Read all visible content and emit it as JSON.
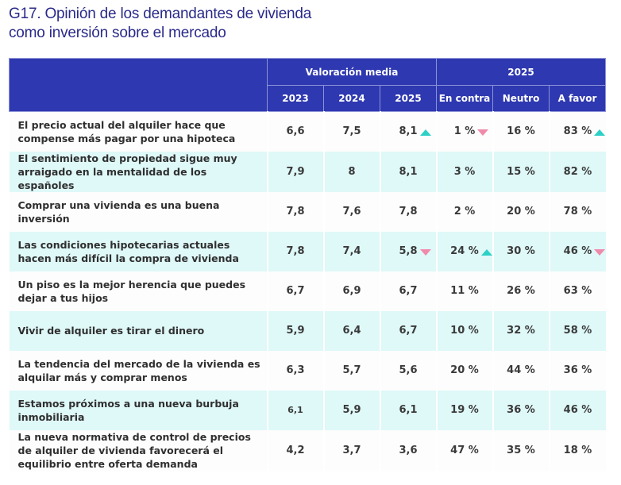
{
  "title": {
    "line1": "G17. Opinión de los demandantes de vivienda",
    "line2": "como inversión sobre el mercado"
  },
  "colors": {
    "header_bg": "#2e38b0",
    "row_alt_bg": "#dff8f8",
    "up_arrow": "#2cd0c6",
    "down_arrow": "#f08aab",
    "title": "#2a2a8a"
  },
  "header": {
    "group1": "Valoración media",
    "group2": "2025",
    "columns": [
      "2023",
      "2024",
      "2025",
      "En contra",
      "Neutro",
      "A favor"
    ]
  },
  "rows": [
    {
      "label": "El precio actual del alquiler hace que compense más pagar por una hipoteca",
      "cells": [
        {
          "v": "6,6"
        },
        {
          "v": "7,5"
        },
        {
          "v": "8,1",
          "arrow": "up"
        },
        {
          "v": "1 %",
          "arrow": "down"
        },
        {
          "v": "16 %"
        },
        {
          "v": "83 %",
          "arrow": "up"
        }
      ]
    },
    {
      "label": "El sentimiento de propiedad sigue muy arraigado en la mentalidad de los españoles",
      "cells": [
        {
          "v": "7,9"
        },
        {
          "v": "8"
        },
        {
          "v": "8,1"
        },
        {
          "v": "3 %"
        },
        {
          "v": "15 %"
        },
        {
          "v": "82 %"
        }
      ]
    },
    {
      "label": "Comprar una vivienda es una buena inversión",
      "cells": [
        {
          "v": "7,8"
        },
        {
          "v": "7,6"
        },
        {
          "v": "7,8"
        },
        {
          "v": "2 %"
        },
        {
          "v": "20 %"
        },
        {
          "v": "78 %"
        }
      ]
    },
    {
      "label": "Las condiciones hipotecarias actuales hacen más difícil la compra de vivienda",
      "cells": [
        {
          "v": "7,8"
        },
        {
          "v": "7,4"
        },
        {
          "v": "5,8",
          "arrow": "down"
        },
        {
          "v": "24 %",
          "arrow": "up"
        },
        {
          "v": "30 %"
        },
        {
          "v": "46 %",
          "arrow": "down"
        }
      ]
    },
    {
      "label": "Un piso es la mejor herencia que puedes dejar a tus hijos",
      "cells": [
        {
          "v": "6,7"
        },
        {
          "v": "6,9"
        },
        {
          "v": "6,7"
        },
        {
          "v": "11 %"
        },
        {
          "v": "26 %"
        },
        {
          "v": "63 %"
        }
      ]
    },
    {
      "label": "Vivir de alquiler es tirar el dinero",
      "cells": [
        {
          "v": "5,9"
        },
        {
          "v": "6,4"
        },
        {
          "v": "6,7"
        },
        {
          "v": "10 %"
        },
        {
          "v": "32 %"
        },
        {
          "v": "58 %"
        }
      ]
    },
    {
      "label": "La tendencia del mercado de la vivienda es alquilar más y comprar menos",
      "cells": [
        {
          "v": "6,3"
        },
        {
          "v": "5,7"
        },
        {
          "v": "5,6"
        },
        {
          "v": "20 %"
        },
        {
          "v": "44 %"
        },
        {
          "v": "36 %"
        }
      ]
    },
    {
      "label": "Estamos próximos a una nueva burbuja inmobiliaria",
      "cells": [
        {
          "v": "6,1",
          "small": true
        },
        {
          "v": "5,9"
        },
        {
          "v": "6,1"
        },
        {
          "v": "19 %"
        },
        {
          "v": "36 %"
        },
        {
          "v": "46 %"
        }
      ]
    },
    {
      "label": "La nueva normativa de control de precios de alquiler de vivienda favorecerá el equilibrio entre oferta demanda",
      "cells": [
        {
          "v": "4,2"
        },
        {
          "v": "3,7"
        },
        {
          "v": "3,6"
        },
        {
          "v": "47 %"
        },
        {
          "v": "35 %"
        },
        {
          "v": "18 %"
        }
      ]
    }
  ]
}
